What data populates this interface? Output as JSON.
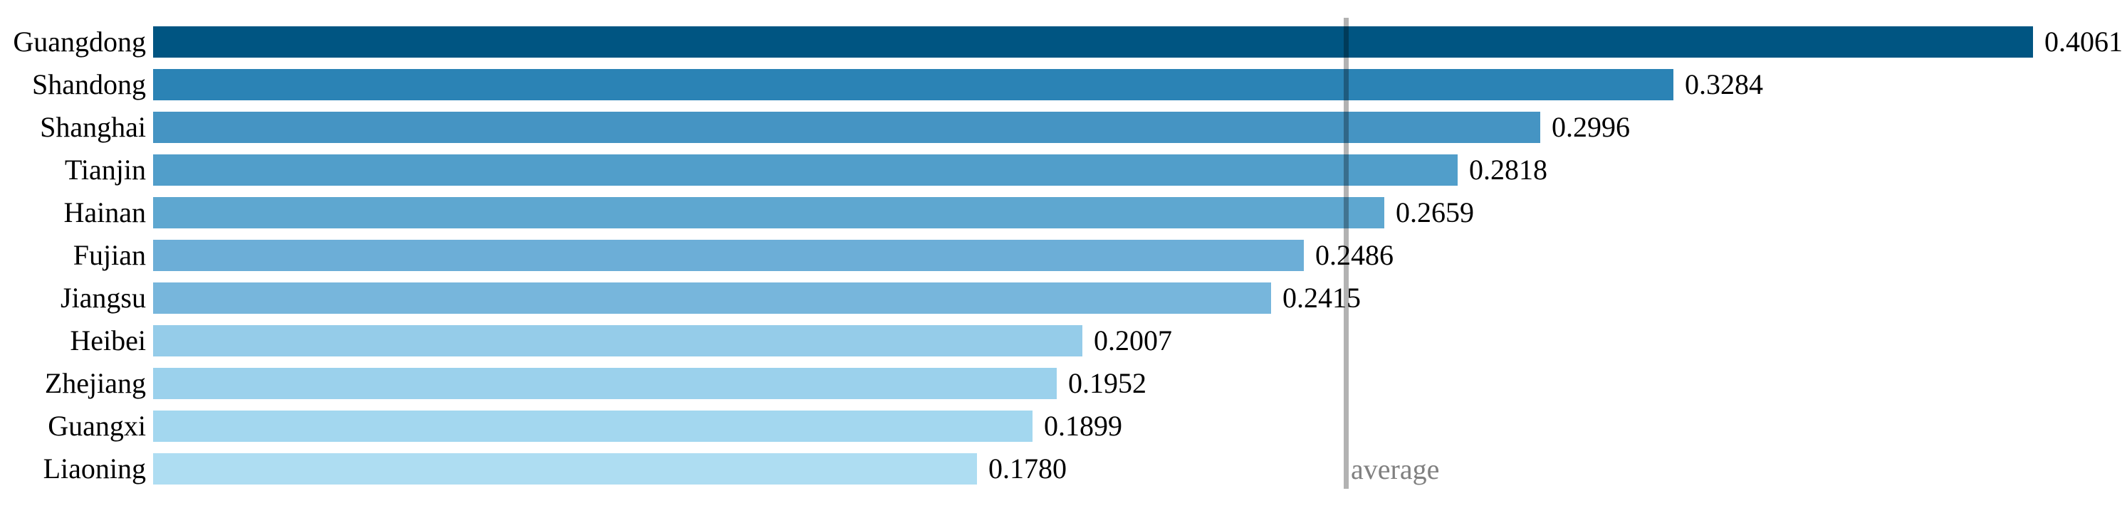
{
  "chart_data": {
    "type": "bar",
    "orientation": "horizontal",
    "title": "",
    "xlabel": "",
    "ylabel": "",
    "grid": false,
    "legend": false,
    "xlim": [
      0,
      0.4061
    ],
    "categories": [
      "Guangdong",
      "Shandong",
      "Shanghai",
      "Tianjin",
      "Hainan",
      "Fujian",
      "Jiangsu",
      "Heibei",
      "Zhejiang",
      "Guangxi",
      "Liaoning"
    ],
    "values": [
      0.4061,
      0.3284,
      0.2996,
      0.2818,
      0.2659,
      0.2486,
      0.2415,
      0.2007,
      0.1952,
      0.1899,
      0.178
    ],
    "value_labels": [
      "0.4061",
      "0.3284",
      "0.2996",
      "0.2818",
      "0.2659",
      "0.2486",
      "0.2415",
      "0.2007",
      "0.1952",
      "0.1899",
      "0.1780"
    ],
    "bar_colors": [
      "#005582",
      "#2b83b5",
      "#4594c3",
      "#519eca",
      "#5ea7d0",
      "#6caed7",
      "#77b6dc",
      "#95cce9",
      "#9bd1ec",
      "#a3d7ef",
      "#aeddf2"
    ],
    "text_color": "#000000",
    "average": {
      "label": "average",
      "value": 0.2578,
      "line_color": "rgba(0,0,0,0.30)",
      "label_color": "#808080"
    }
  }
}
